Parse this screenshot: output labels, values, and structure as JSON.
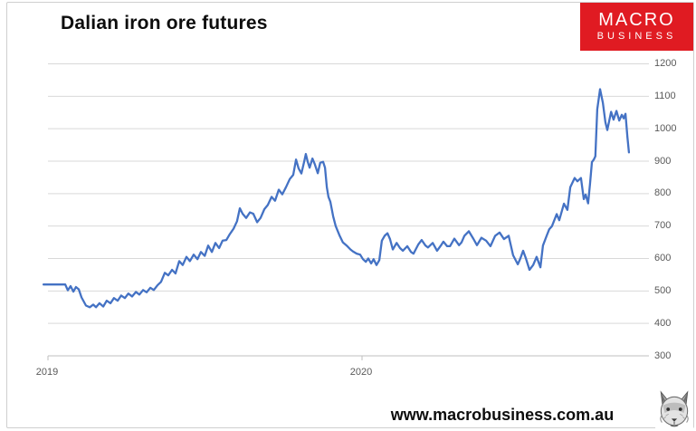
{
  "header": {
    "title": "Dalian iron ore futures"
  },
  "logo": {
    "line1": "MACRO",
    "line2": "BUSINESS",
    "bg_color": "#e01b22",
    "text_color": "#ffffff"
  },
  "footer": {
    "website": "www.macrobusiness.com.au",
    "wolf_icon": "wolf-head-sketch"
  },
  "chart_data": {
    "type": "line",
    "title": "Dalian iron ore futures",
    "series": [
      {
        "name": "Dalian iron ore futures price"
      }
    ],
    "legend": "none",
    "grid": "horizontal",
    "line_color": "#4472c4",
    "grid_color": "#d9d9d9",
    "axis_line_color": "#bfbfbf",
    "axis_label_color": "#595959",
    "x_axis": {
      "ticks": [
        "2019",
        "2020"
      ],
      "tick_years": [
        2019,
        2020
      ],
      "type": "time"
    },
    "y_axis": {
      "min": 300,
      "max": 1200,
      "ticks": [
        300,
        400,
        500,
        600,
        700,
        800,
        900,
        1000,
        1100,
        1200
      ],
      "side": "right"
    },
    "points": [
      [
        2018.986,
        520
      ],
      [
        2019.02,
        520
      ],
      [
        2019.055,
        520
      ],
      [
        2019.063,
        502
      ],
      [
        2019.072,
        515
      ],
      [
        2019.081,
        498
      ],
      [
        2019.089,
        512
      ],
      [
        2019.098,
        505
      ],
      [
        2019.107,
        480
      ],
      [
        2019.121,
        455
      ],
      [
        2019.133,
        450
      ],
      [
        2019.144,
        458
      ],
      [
        2019.153,
        450
      ],
      [
        2019.164,
        462
      ],
      [
        2019.176,
        452
      ],
      [
        2019.187,
        470
      ],
      [
        2019.199,
        462
      ],
      [
        2019.21,
        478
      ],
      [
        2019.222,
        470
      ],
      [
        2019.233,
        486
      ],
      [
        2019.245,
        478
      ],
      [
        2019.256,
        492
      ],
      [
        2019.268,
        483
      ],
      [
        2019.28,
        497
      ],
      [
        2019.291,
        489
      ],
      [
        2019.303,
        503
      ],
      [
        2019.314,
        496
      ],
      [
        2019.326,
        510
      ],
      [
        2019.337,
        503
      ],
      [
        2019.349,
        518
      ],
      [
        2019.36,
        528
      ],
      [
        2019.372,
        556
      ],
      [
        2019.383,
        548
      ],
      [
        2019.395,
        565
      ],
      [
        2019.406,
        554
      ],
      [
        2019.418,
        592
      ],
      [
        2019.429,
        580
      ],
      [
        2019.441,
        605
      ],
      [
        2019.452,
        592
      ],
      [
        2019.464,
        612
      ],
      [
        2019.476,
        598
      ],
      [
        2019.487,
        620
      ],
      [
        2019.499,
        608
      ],
      [
        2019.51,
        640
      ],
      [
        2019.522,
        620
      ],
      [
        2019.533,
        648
      ],
      [
        2019.545,
        632
      ],
      [
        2019.556,
        655
      ],
      [
        2019.568,
        657
      ],
      [
        2019.579,
        675
      ],
      [
        2019.591,
        692
      ],
      [
        2019.602,
        715
      ],
      [
        2019.611,
        755
      ],
      [
        2019.62,
        738
      ],
      [
        2019.631,
        725
      ],
      [
        2019.643,
        742
      ],
      [
        2019.654,
        738
      ],
      [
        2019.666,
        712
      ],
      [
        2019.677,
        725
      ],
      [
        2019.689,
        752
      ],
      [
        2019.7,
        765
      ],
      [
        2019.712,
        790
      ],
      [
        2019.723,
        778
      ],
      [
        2019.735,
        812
      ],
      [
        2019.746,
        798
      ],
      [
        2019.758,
        820
      ],
      [
        2019.77,
        845
      ],
      [
        2019.781,
        858
      ],
      [
        2019.79,
        905
      ],
      [
        2019.798,
        878
      ],
      [
        2019.807,
        862
      ],
      [
        2019.816,
        900
      ],
      [
        2019.821,
        922
      ],
      [
        2019.827,
        898
      ],
      [
        2019.833,
        880
      ],
      [
        2019.842,
        908
      ],
      [
        2019.85,
        890
      ],
      [
        2019.859,
        863
      ],
      [
        2019.867,
        895
      ],
      [
        2019.876,
        898
      ],
      [
        2019.882,
        880
      ],
      [
        2019.888,
        820
      ],
      [
        2019.893,
        790
      ],
      [
        2019.899,
        775
      ],
      [
        2019.908,
        730
      ],
      [
        2019.916,
        700
      ],
      [
        2019.928,
        672
      ],
      [
        2019.939,
        650
      ],
      [
        2019.951,
        640
      ],
      [
        2019.963,
        628
      ],
      [
        2019.971,
        622
      ],
      [
        2019.983,
        615
      ],
      [
        2019.994,
        612
      ],
      [
        2020.003,
        598
      ],
      [
        2020.012,
        590
      ],
      [
        2020.02,
        600
      ],
      [
        2020.029,
        585
      ],
      [
        2020.037,
        598
      ],
      [
        2020.046,
        580
      ],
      [
        2020.055,
        595
      ],
      [
        2020.063,
        655
      ],
      [
        2020.072,
        670
      ],
      [
        2020.081,
        678
      ],
      [
        2020.089,
        660
      ],
      [
        2020.098,
        628
      ],
      [
        2020.11,
        648
      ],
      [
        2020.121,
        632
      ],
      [
        2020.13,
        624
      ],
      [
        2020.144,
        638
      ],
      [
        2020.156,
        620
      ],
      [
        2020.164,
        615
      ],
      [
        2020.179,
        643
      ],
      [
        2020.19,
        657
      ],
      [
        2020.202,
        640
      ],
      [
        2020.21,
        634
      ],
      [
        2020.225,
        648
      ],
      [
        2020.239,
        624
      ],
      [
        2020.251,
        640
      ],
      [
        2020.259,
        652
      ],
      [
        2020.271,
        638
      ],
      [
        2020.28,
        638
      ],
      [
        2020.294,
        661
      ],
      [
        2020.309,
        641
      ],
      [
        2020.317,
        650
      ],
      [
        2020.326,
        670
      ],
      [
        2020.34,
        684
      ],
      [
        2020.355,
        660
      ],
      [
        2020.366,
        641
      ],
      [
        2020.38,
        664
      ],
      [
        2020.395,
        655
      ],
      [
        2020.409,
        638
      ],
      [
        2020.424,
        670
      ],
      [
        2020.438,
        680
      ],
      [
        2020.452,
        660
      ],
      [
        2020.467,
        670
      ],
      [
        2020.481,
        610
      ],
      [
        2020.496,
        582
      ],
      [
        2020.504,
        600
      ],
      [
        2020.513,
        624
      ],
      [
        2020.522,
        600
      ],
      [
        2020.533,
        565
      ],
      [
        2020.545,
        580
      ],
      [
        2020.556,
        605
      ],
      [
        2020.568,
        573
      ],
      [
        2020.576,
        640
      ],
      [
        2020.588,
        670
      ],
      [
        2020.596,
        690
      ],
      [
        2020.605,
        700
      ],
      [
        2020.62,
        737
      ],
      [
        2020.628,
        718
      ],
      [
        2020.643,
        769
      ],
      [
        2020.654,
        750
      ],
      [
        2020.663,
        820
      ],
      [
        2020.677,
        848
      ],
      [
        2020.686,
        838
      ],
      [
        2020.697,
        848
      ],
      [
        2020.706,
        783
      ],
      [
        2020.712,
        797
      ],
      [
        2020.72,
        770
      ],
      [
        2020.726,
        830
      ],
      [
        2020.732,
        897
      ],
      [
        2020.738,
        905
      ],
      [
        2020.743,
        915
      ],
      [
        2020.749,
        1060
      ],
      [
        2020.758,
        1122
      ],
      [
        2020.767,
        1080
      ],
      [
        2020.775,
        1020
      ],
      [
        2020.781,
        996
      ],
      [
        2020.793,
        1052
      ],
      [
        2020.801,
        1028
      ],
      [
        2020.81,
        1055
      ],
      [
        2020.819,
        1025
      ],
      [
        2020.827,
        1043
      ],
      [
        2020.833,
        1032
      ],
      [
        2020.839,
        1046
      ],
      [
        2020.845,
        975
      ],
      [
        2020.85,
        927
      ]
    ]
  }
}
